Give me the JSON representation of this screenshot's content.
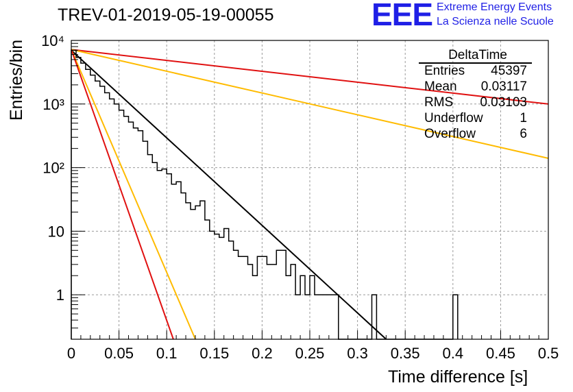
{
  "chart_data": {
    "type": "histogram",
    "title": "TREV-01-2019-05-19-00055",
    "xlabel": "Time difference [s]",
    "ylabel": "Entries/bin",
    "xlim": [
      0,
      0.5
    ],
    "ylim": [
      0.2,
      10000
    ],
    "yscale": "log",
    "grid": true,
    "x_ticks": [
      "0",
      "0.05",
      "0.1",
      "0.15",
      "0.2",
      "0.25",
      "0.3",
      "0.35",
      "0.4",
      "0.45",
      "0.5"
    ],
    "y_ticks": [
      "1",
      "10",
      "10²",
      "10³",
      "10⁴"
    ],
    "histogram": {
      "bin_width": 0.005,
      "counts": [
        7000,
        5400,
        4400,
        3500,
        2850,
        2300,
        1900,
        1500,
        1200,
        1000,
        800,
        640,
        520,
        420,
        380,
        260,
        160,
        120,
        90,
        95,
        80,
        55,
        60,
        40,
        28,
        22,
        25,
        30,
        15,
        10,
        9,
        8,
        11,
        7,
        5,
        4,
        4,
        3,
        2,
        4,
        4,
        3,
        3,
        5,
        5,
        2,
        3,
        1,
        2,
        1,
        2,
        1,
        1,
        1,
        1,
        1,
        0,
        0,
        0,
        0,
        0,
        0,
        0,
        1,
        0,
        0,
        0,
        0,
        0,
        0,
        0,
        0,
        0,
        0,
        0,
        0,
        0,
        0,
        0,
        0,
        1
      ]
    },
    "fit_lines": [
      {
        "color": "#000000",
        "points": [
          [
            0,
            7000
          ],
          [
            0.33,
            0.2
          ]
        ]
      },
      {
        "color": "#e01010",
        "points": [
          [
            0,
            7200
          ],
          [
            0.5,
            1000
          ]
        ]
      },
      {
        "color": "#ffbb00",
        "points": [
          [
            0,
            7200
          ],
          [
            0.5,
            140
          ]
        ]
      },
      {
        "color": "#ffbb00",
        "points": [
          [
            0,
            7200
          ],
          [
            0.13,
            0.2
          ]
        ]
      },
      {
        "color": "#e01010",
        "points": [
          [
            0,
            7200
          ],
          [
            0.107,
            0.2
          ]
        ]
      }
    ],
    "stats_box": {
      "title": "DeltaTime",
      "rows": [
        {
          "label": "Entries",
          "value": "45397"
        },
        {
          "label": "Mean",
          "value": "0.03117"
        },
        {
          "label": "RMS",
          "value": "0.03103"
        },
        {
          "label": "Underflow",
          "value": "1"
        },
        {
          "label": "Overflow",
          "value": "6"
        }
      ]
    }
  },
  "logo": {
    "mark": "EEE",
    "line1": "Extreme Energy Events",
    "line2": "La Scienza nelle Scuole",
    "color": "#1f1fe6"
  }
}
